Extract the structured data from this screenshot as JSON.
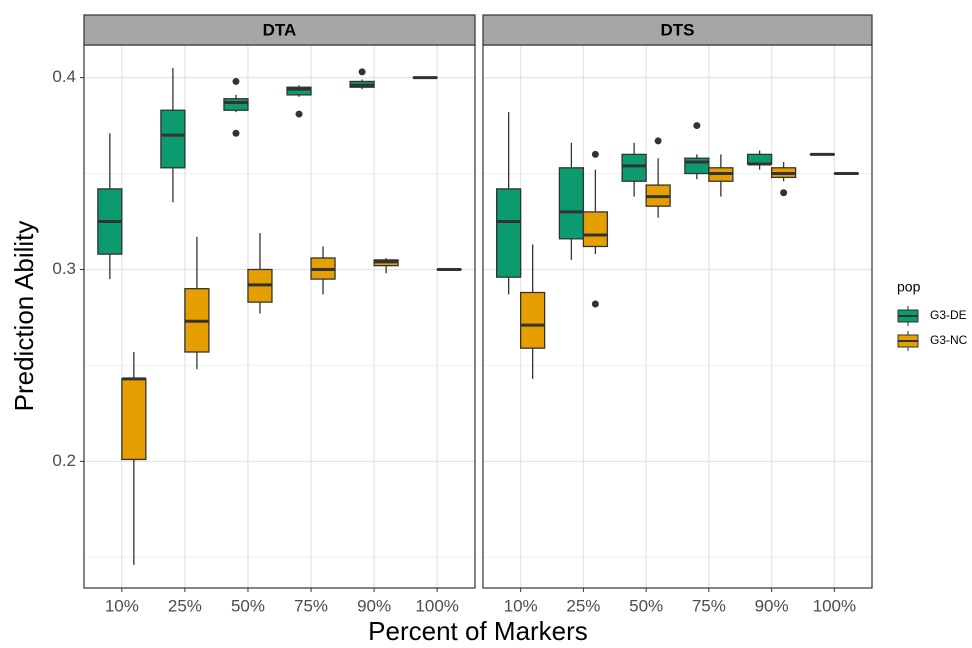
{
  "chart_data": {
    "type": "box",
    "x_label": "Percent of Markers",
    "y_label": "Prediction Ability",
    "legend_title": "pop",
    "categories": [
      "10%",
      "25%",
      "50%",
      "75%",
      "90%",
      "100%"
    ],
    "ylim": [
      0.134,
      0.417
    ],
    "yticks": [
      0.2,
      0.3,
      0.4
    ],
    "minor_grid": [
      0.15,
      0.25,
      0.35
    ],
    "grid": true,
    "facets": [
      {
        "title": "DTA",
        "series": [
          {
            "name": "G3-DE",
            "color": "#0b9b6f",
            "low": [
              0.295,
              0.335,
              0.382,
              0.39,
              0.394,
              0.4
            ],
            "q1": [
              0.308,
              0.353,
              0.383,
              0.391,
              0.395,
              0.4
            ],
            "median": [
              0.325,
              0.37,
              0.387,
              0.394,
              0.396,
              0.4
            ],
            "q3": [
              0.342,
              0.383,
              0.389,
              0.395,
              0.398,
              0.4
            ],
            "high": [
              0.371,
              0.405,
              0.391,
              0.396,
              0.399,
              0.4
            ],
            "outliers": [
              [],
              [],
              [
                0.398,
                0.371
              ],
              [
                0.381
              ],
              [
                0.403
              ],
              []
            ]
          },
          {
            "name": "G3-NC",
            "color": "#e69f00",
            "low": [
              0.146,
              0.248,
              0.277,
              0.287,
              0.298,
              0.3
            ],
            "q1": [
              0.201,
              0.257,
              0.283,
              0.295,
              0.302,
              0.3
            ],
            "median": [
              0.243,
              0.273,
              0.292,
              0.3,
              0.304,
              0.3
            ],
            "q3": [
              0.243,
              0.29,
              0.3,
              0.306,
              0.305,
              0.3
            ],
            "high": [
              0.257,
              0.317,
              0.319,
              0.312,
              0.306,
              0.3
            ],
            "outliers": [
              [],
              [],
              [],
              [],
              [],
              []
            ]
          }
        ]
      },
      {
        "title": "DTS",
        "series": [
          {
            "name": "G3-DE",
            "color": "#0b9b6f",
            "low": [
              0.287,
              0.305,
              0.338,
              0.347,
              0.352,
              0.36
            ],
            "q1": [
              0.296,
              0.316,
              0.346,
              0.35,
              0.355,
              0.36
            ],
            "median": [
              0.325,
              0.33,
              0.354,
              0.356,
              0.355,
              0.36
            ],
            "q3": [
              0.342,
              0.353,
              0.36,
              0.358,
              0.36,
              0.36
            ],
            "high": [
              0.382,
              0.366,
              0.366,
              0.36,
              0.362,
              0.36
            ],
            "outliers": [
              [],
              [],
              [],
              [
                0.375
              ],
              [],
              []
            ]
          },
          {
            "name": "G3-NC",
            "color": "#e69f00",
            "low": [
              0.243,
              0.308,
              0.327,
              0.338,
              0.346,
              0.35
            ],
            "q1": [
              0.259,
              0.312,
              0.333,
              0.346,
              0.348,
              0.35
            ],
            "median": [
              0.271,
              0.318,
              0.338,
              0.35,
              0.35,
              0.35
            ],
            "q3": [
              0.288,
              0.33,
              0.344,
              0.353,
              0.353,
              0.35
            ],
            "high": [
              0.313,
              0.352,
              0.358,
              0.36,
              0.356,
              0.35
            ],
            "outliers": [
              [],
              [
                0.36,
                0.282
              ],
              [
                0.367
              ],
              [],
              [
                0.34
              ],
              []
            ]
          }
        ]
      }
    ]
  }
}
